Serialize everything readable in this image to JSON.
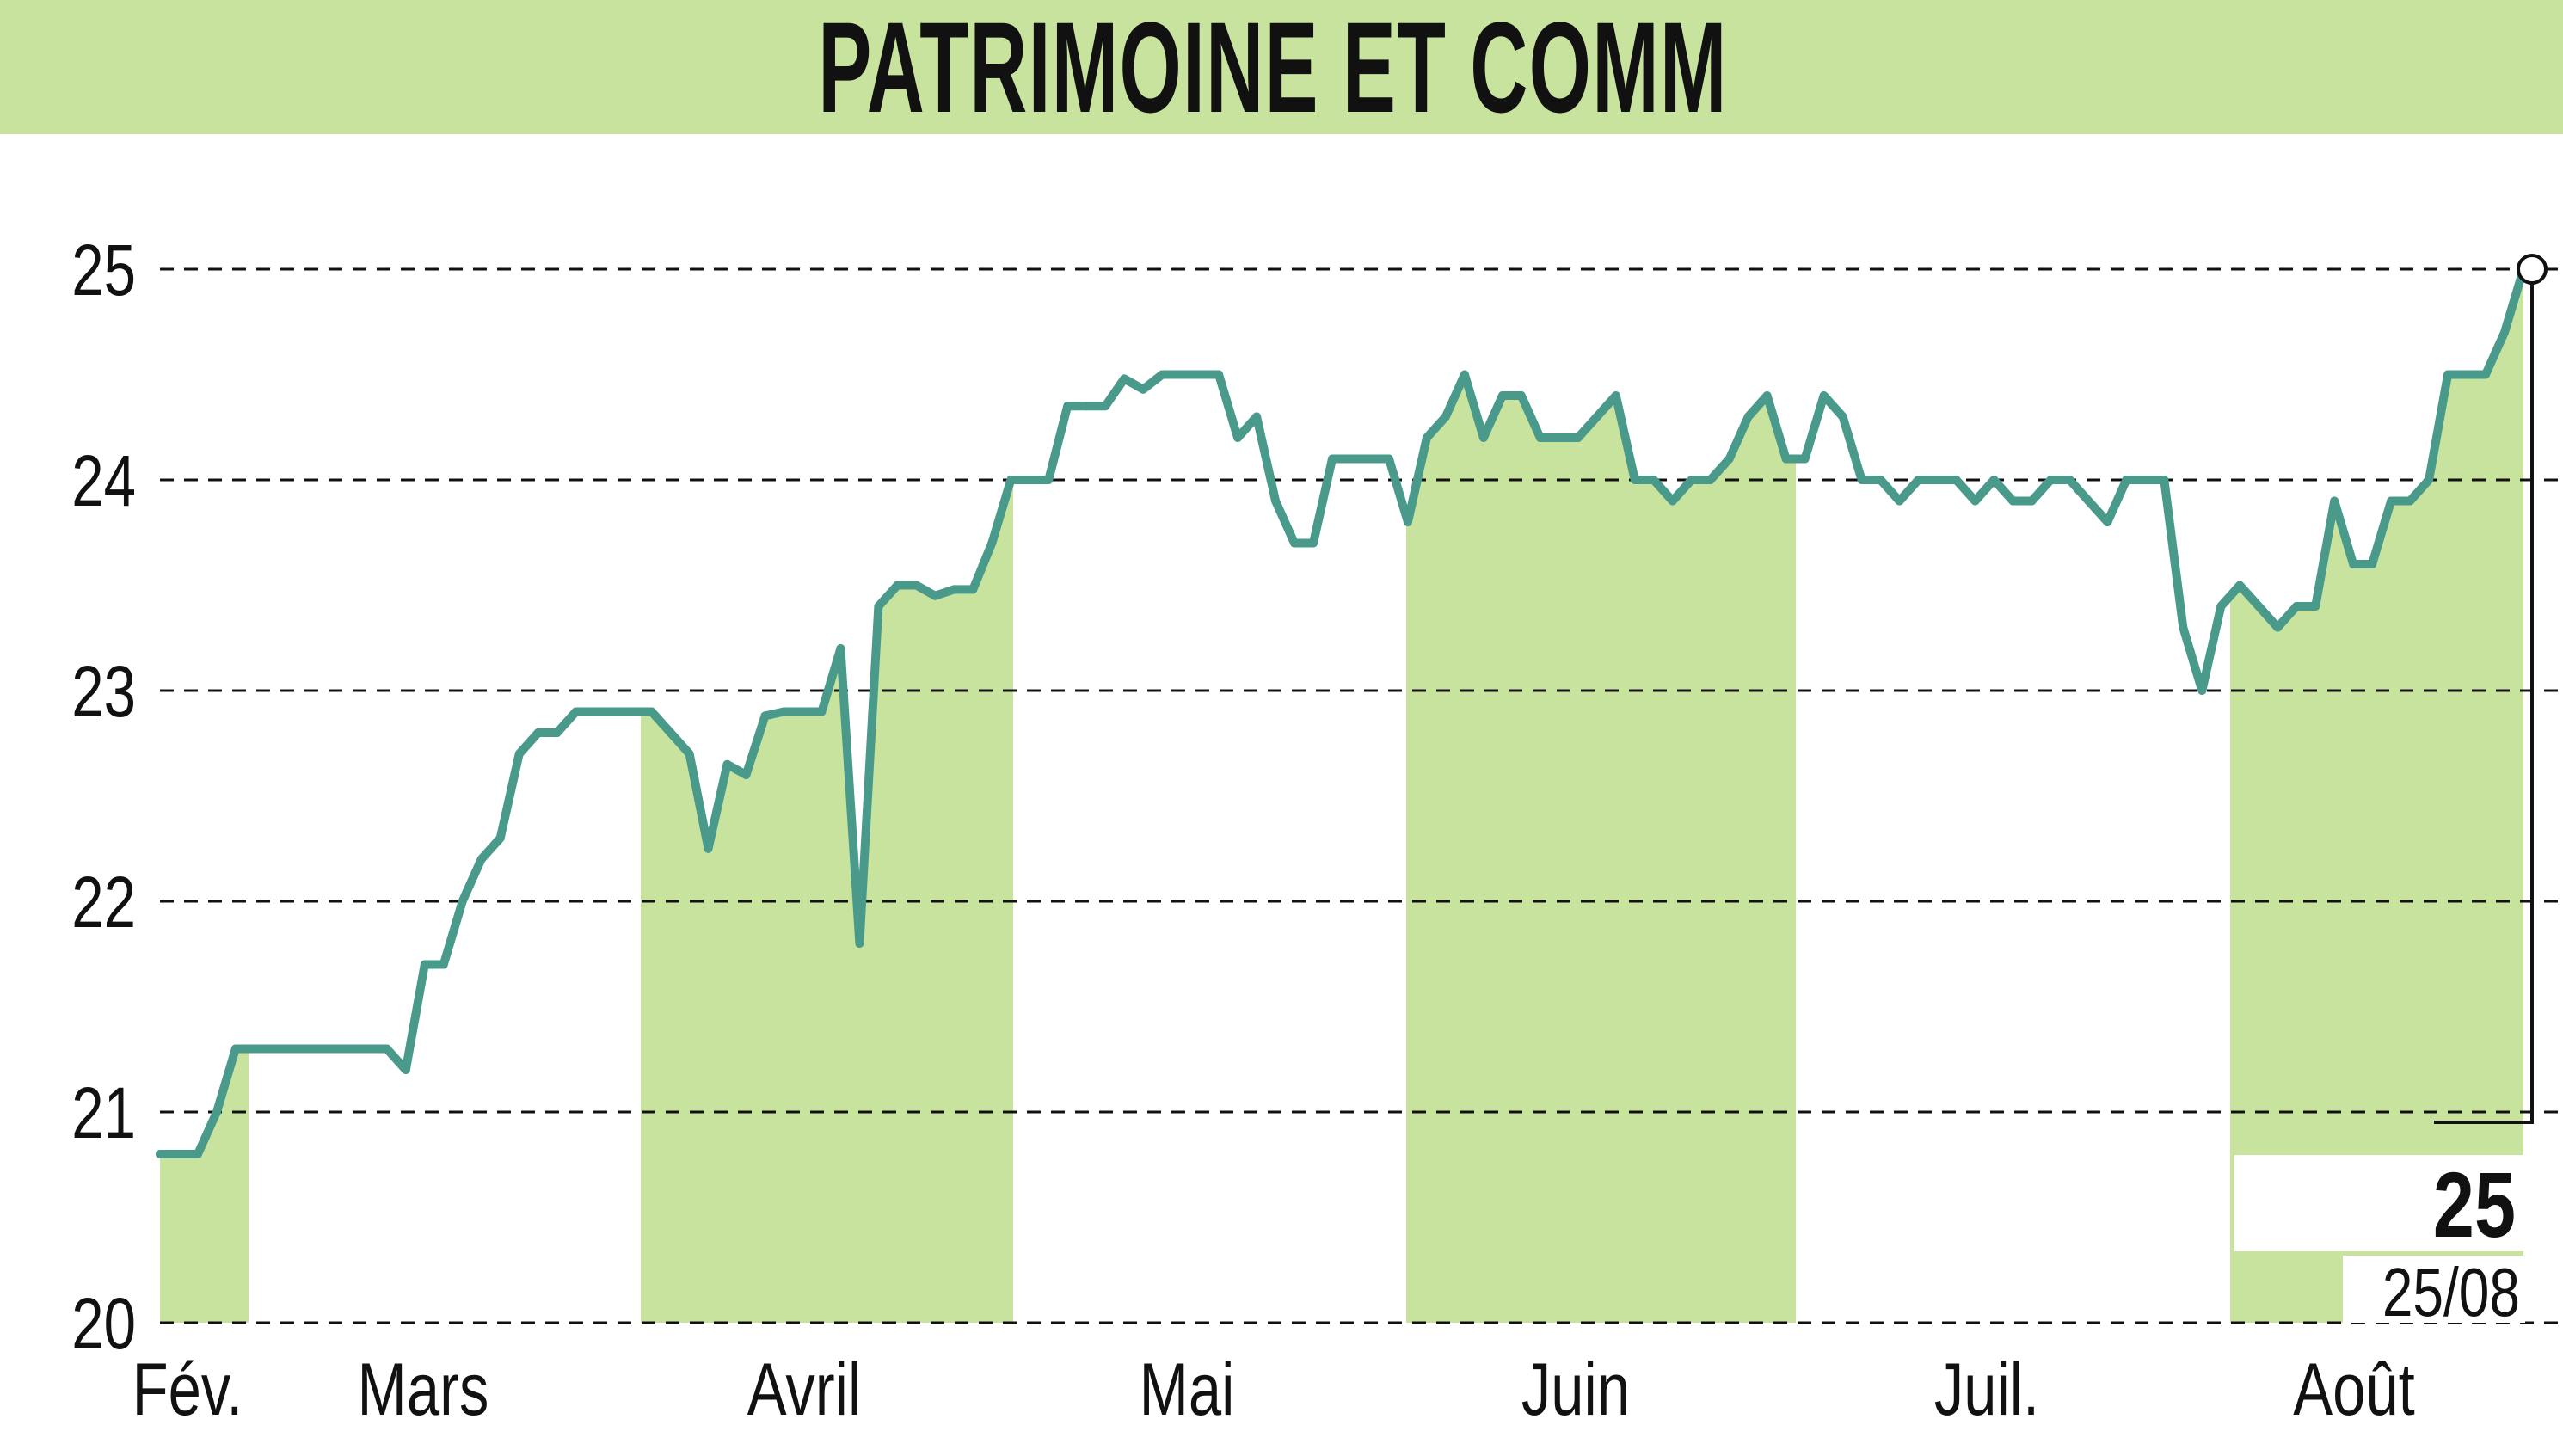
{
  "title": "PATRIMOINE ET COMM",
  "colors": {
    "title_background": "#c8e39e",
    "month_band": "#c8e39e",
    "line": "#4a9a8c",
    "grid": "#111111",
    "text": "#111111"
  },
  "chart_data": {
    "type": "line",
    "title": "PATRIMOINE ET COMM",
    "xlabel": "",
    "ylabel": "",
    "ylim": [
      20,
      25
    ],
    "yticks": [
      20,
      21,
      22,
      23,
      24,
      25
    ],
    "grid": "horizontal dashed",
    "month_labels": [
      "Fév.",
      "Mars",
      "Avril",
      "Mai",
      "Juin",
      "Juil.",
      "Août"
    ],
    "month_shading": [
      true,
      false,
      true,
      false,
      true,
      false,
      true
    ],
    "series": [
      {
        "values": [
          20.8,
          20.8,
          20.8,
          21.0,
          21.3,
          21.3,
          21.3,
          21.3,
          21.3,
          21.3,
          21.3,
          21.3,
          21.3,
          21.2,
          21.7,
          21.7,
          22.0,
          22.2,
          22.3,
          22.7,
          22.8,
          22.8,
          22.9,
          22.9,
          22.9,
          22.9,
          22.9,
          22.8,
          22.7,
          22.25,
          22.65,
          22.6,
          22.88,
          22.9,
          22.9,
          22.9,
          23.2,
          21.8,
          23.4,
          23.5,
          23.5,
          23.45,
          23.48,
          23.48,
          23.7,
          24.0,
          24.0,
          24.0,
          24.35,
          24.35,
          24.35,
          24.48,
          24.43,
          24.5,
          24.5,
          24.5,
          24.5,
          24.2,
          24.3,
          23.9,
          23.7,
          23.7,
          24.1,
          24.1,
          24.1,
          24.1,
          23.8,
          24.2,
          24.3,
          24.5,
          24.2,
          24.4,
          24.4,
          24.2,
          24.2,
          24.2,
          24.3,
          24.4,
          24.0,
          24.0,
          23.9,
          24.0,
          24.0,
          24.1,
          24.3,
          24.4,
          24.1,
          24.1,
          24.4,
          24.3,
          24.0,
          24.0,
          23.9,
          24.0,
          24.0,
          24.0,
          23.9,
          24.0,
          23.9,
          23.9,
          24.0,
          24.0,
          23.9,
          23.8,
          24.0,
          24.0,
          24.0,
          23.3,
          23.0,
          23.4,
          23.5,
          23.4,
          23.3,
          23.4,
          23.4,
          23.9,
          23.6,
          23.6,
          23.9,
          23.9,
          24.0,
          24.5,
          24.5,
          24.5,
          24.7,
          25.0
        ]
      }
    ],
    "last_value_label": "25",
    "last_date_label": "25/08"
  }
}
